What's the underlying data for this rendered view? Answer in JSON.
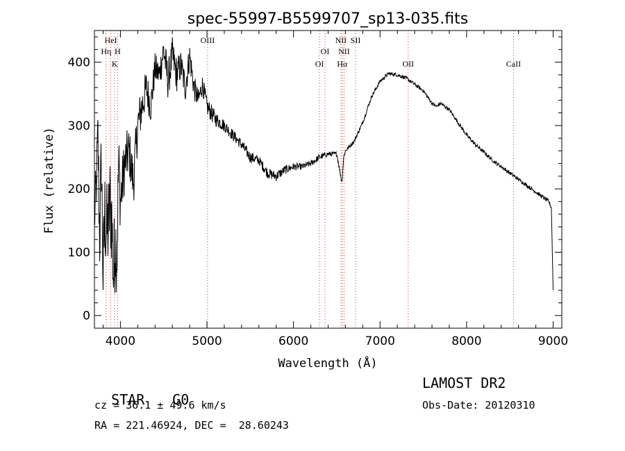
{
  "chart_data": {
    "type": "line",
    "title": "spec-55997-B5599707_sp13-035.fits",
    "xlabel": "Wavelength (Å)",
    "ylabel": "Flux (relative)",
    "xlim": [
      3700,
      9100
    ],
    "ylim": [
      -20,
      450
    ],
    "x_ticks": [
      4000,
      5000,
      6000,
      7000,
      8000,
      9000
    ],
    "y_ticks": [
      0,
      100,
      200,
      300,
      400
    ],
    "grid": false,
    "series": [
      {
        "x": [
          3700,
          3720,
          3740,
          3760,
          3780,
          3800,
          3820,
          3840,
          3860,
          3880,
          3900,
          3920,
          3940,
          3960,
          3980,
          4000,
          4050,
          4100,
          4150,
          4200,
          4250,
          4300,
          4350,
          4400,
          4450,
          4500,
          4550,
          4600,
          4650,
          4700,
          4750,
          4800,
          4850,
          4900,
          4950,
          5000,
          5050,
          5100,
          5200,
          5300,
          5400,
          5500,
          5600,
          5700,
          5800,
          5900,
          6000,
          6100,
          6200,
          6300,
          6400,
          6500,
          6560,
          6580,
          6600,
          6700,
          6800,
          6900,
          7000,
          7100,
          7200,
          7300,
          7400,
          7500,
          7600,
          7650,
          7700,
          7800,
          7900,
          8000,
          8100,
          8200,
          8300,
          8400,
          8500,
          8600,
          8700,
          8800,
          8900,
          8950,
          8980,
          9000
        ],
        "values": [
          150,
          200,
          280,
          120,
          250,
          60,
          160,
          130,
          140,
          180,
          150,
          60,
          120,
          100,
          240,
          180,
          240,
          260,
          210,
          300,
          330,
          360,
          330,
          390,
          380,
          420,
          370,
          410,
          380,
          395,
          360,
          410,
          360,
          340,
          365,
          330,
          320,
          310,
          300,
          285,
          270,
          250,
          245,
          225,
          220,
          230,
          235,
          235,
          240,
          250,
          255,
          255,
          210,
          250,
          260,
          275,
          305,
          345,
          370,
          382,
          380,
          375,
          365,
          355,
          335,
          330,
          335,
          325,
          305,
          285,
          270,
          258,
          245,
          235,
          225,
          215,
          205,
          195,
          185,
          180,
          170,
          40
        ],
        "noise_amplitude": [
          40,
          55,
          60,
          65,
          70,
          75,
          80,
          80,
          80,
          80,
          80,
          80,
          75,
          70,
          60,
          50,
          45,
          40,
          40,
          38,
          35,
          30,
          28,
          25,
          25,
          28,
          30,
          30,
          28,
          25,
          25,
          22,
          20,
          18,
          16,
          15,
          14,
          12,
          10,
          9,
          9,
          9,
          8,
          8,
          8,
          7,
          6,
          5,
          5,
          5,
          4,
          4,
          4,
          4,
          3,
          3,
          3,
          3,
          3,
          3,
          3,
          3,
          3,
          3,
          3,
          3,
          3,
          3,
          3,
          3,
          3,
          3,
          3,
          3,
          3,
          3,
          3,
          3,
          3,
          3,
          3,
          0
        ]
      }
    ],
    "spectral_lines": [
      {
        "label": "HeI",
        "x": 3889,
        "row": 1
      },
      {
        "label": "Hη",
        "x": 3835,
        "row": 2
      },
      {
        "label": "H",
        "x": 3968,
        "row": 2
      },
      {
        "label": "K",
        "x": 3934,
        "row": 3
      },
      {
        "label": "OIII",
        "x": 5007,
        "row": 1
      },
      {
        "label": "NII",
        "x": 6548,
        "row": 1
      },
      {
        "label": "SII",
        "x": 6717,
        "row": 1
      },
      {
        "label": "OI",
        "x": 6364,
        "row": 2
      },
      {
        "label": "NII",
        "x": 6584,
        "row": 2
      },
      {
        "label": "OI",
        "x": 6300,
        "row": 3
      },
      {
        "label": "Hα",
        "x": 6563,
        "row": 3
      },
      {
        "label": "OII",
        "x": 7325,
        "row": 3
      },
      {
        "label": "CaII",
        "x": 8542,
        "row": 3
      }
    ]
  },
  "info": {
    "class": "STAR",
    "subclass": "G0",
    "survey": "LAMOST DR2",
    "cz": "cz = 36.1 ± 49.6 km/s",
    "obs_date": "Obs-Date: 20120310",
    "coords": "RA = 221.46924, DEC =  28.60243"
  },
  "colors": {
    "axis": "#000000",
    "spectrum": "#000000",
    "line_marker": "#cc3333"
  }
}
